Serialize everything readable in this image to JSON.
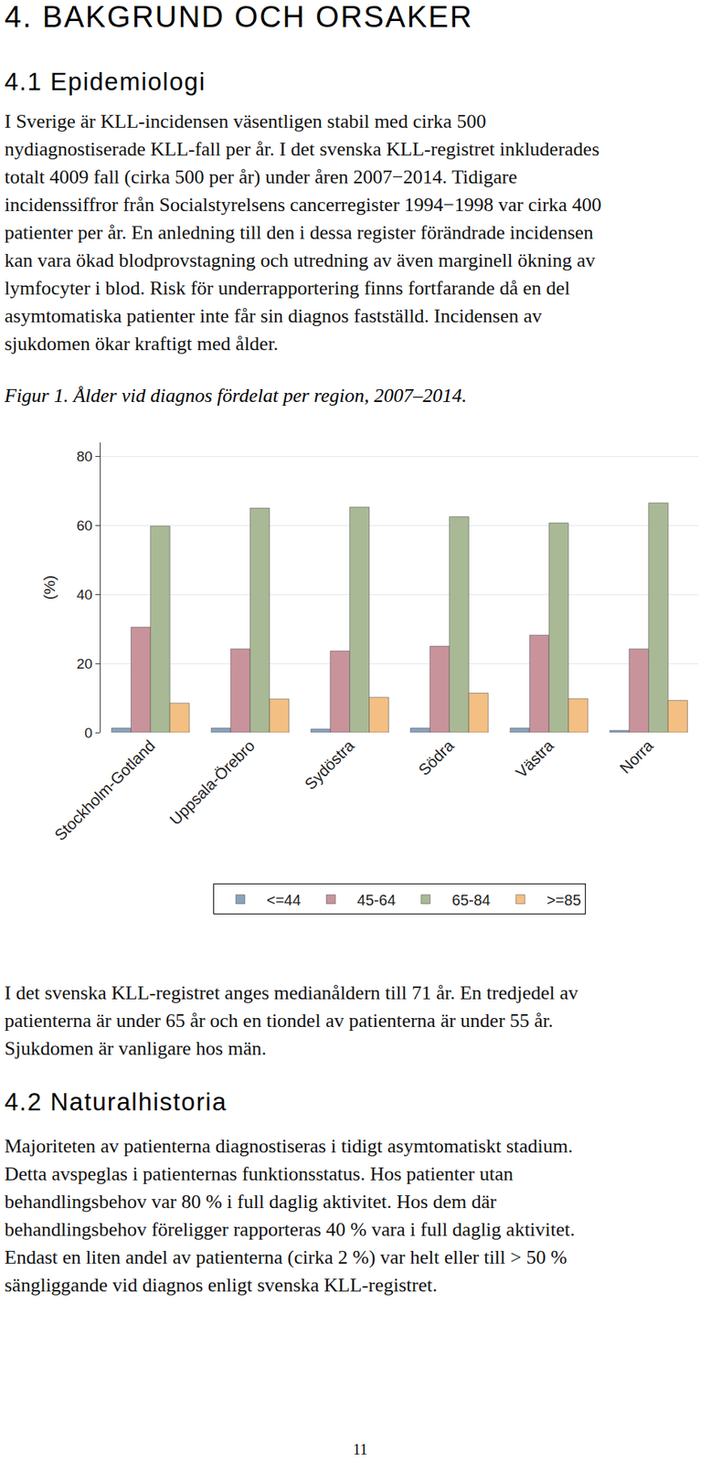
{
  "heading": "4. BAKGRUND OCH ORSAKER",
  "section_1": {
    "title": "4.1 Epidemiologi",
    "paragraph_lines": [
      "I Sverige är KLL-incidensen väsentligen stabil med cirka 500",
      "nydiagnostiserade KLL-fall per år. I det svenska KLL-registret inkluderades",
      "totalt 4009 fall (cirka 500 per år) under åren 2007−2014. Tidigare",
      "incidenssiffror från Socialstyrelsens cancerregister 1994−1998 var cirka 400",
      "patienter per år. En anledning till den i dessa register förändrade incidensen",
      "kan vara ökad blodprovstagning och utredning av även marginell ökning av",
      "lymfocyter i blod. Risk för underrapportering finns fortfarande då en del",
      "asymtomatiska patienter inte får sin diagnos fastställd. Incidensen av",
      "sjukdomen ökar kraftigt med ålder."
    ],
    "figure_caption": "Figur 1. Ålder vid diagnos fördelat per region, 2007–2014.",
    "paragraph_after_lines": [
      "I det svenska KLL-registret anges medianåldern till 71 år. En tredjedel av",
      "patienterna är under 65 år och en tiondel av patienterna är under 55 år.",
      "Sjukdomen är vanligare hos män."
    ]
  },
  "section_2": {
    "title": "4.2 Naturalhistoria",
    "paragraph_lines": [
      "Majoriteten av patienterna diagnostiseras i tidigt asymtomatiskt stadium.",
      "Detta avspeglas i patienternas funktionsstatus. Hos patienter utan",
      "behandlingsbehov var 80 % i full daglig aktivitet.  Hos dem där",
      "behandlingsbehov föreligger rapporteras 40 % vara i full daglig aktivitet.",
      "Endast en liten andel av patienterna (cirka 2 %) var helt eller till > 50 %",
      "sängliggande vid diagnos enligt svenska KLL-registret."
    ]
  },
  "page_number": "11",
  "chart_data": {
    "type": "bar",
    "y_label": "(%)",
    "categories": [
      "Stockholm-Gotland",
      "Uppsala-Örebro",
      "Sydöstra",
      "Södra",
      "Västra",
      "Norra"
    ],
    "series": [
      {
        "name": "<=44",
        "color": "#8aa2bd",
        "values": [
          1.3,
          1.3,
          1.0,
          1.3,
          1.3,
          0.6
        ]
      },
      {
        "name": "45-64",
        "color": "#c8939b",
        "values": [
          30.5,
          24.2,
          23.6,
          25.0,
          28.2,
          24.2
        ]
      },
      {
        "name": "65-84",
        "color": "#a9b995",
        "values": [
          59.8,
          65.0,
          65.3,
          62.5,
          60.7,
          66.5
        ]
      },
      {
        "name": ">=85",
        "color": "#f3bf82",
        "values": [
          8.5,
          9.7,
          10.2,
          11.4,
          9.8,
          9.3
        ]
      }
    ],
    "ylim": [
      0,
      84
    ],
    "yticks": [
      0,
      20,
      40,
      60,
      80
    ],
    "grid": true,
    "legend": "bottom"
  }
}
